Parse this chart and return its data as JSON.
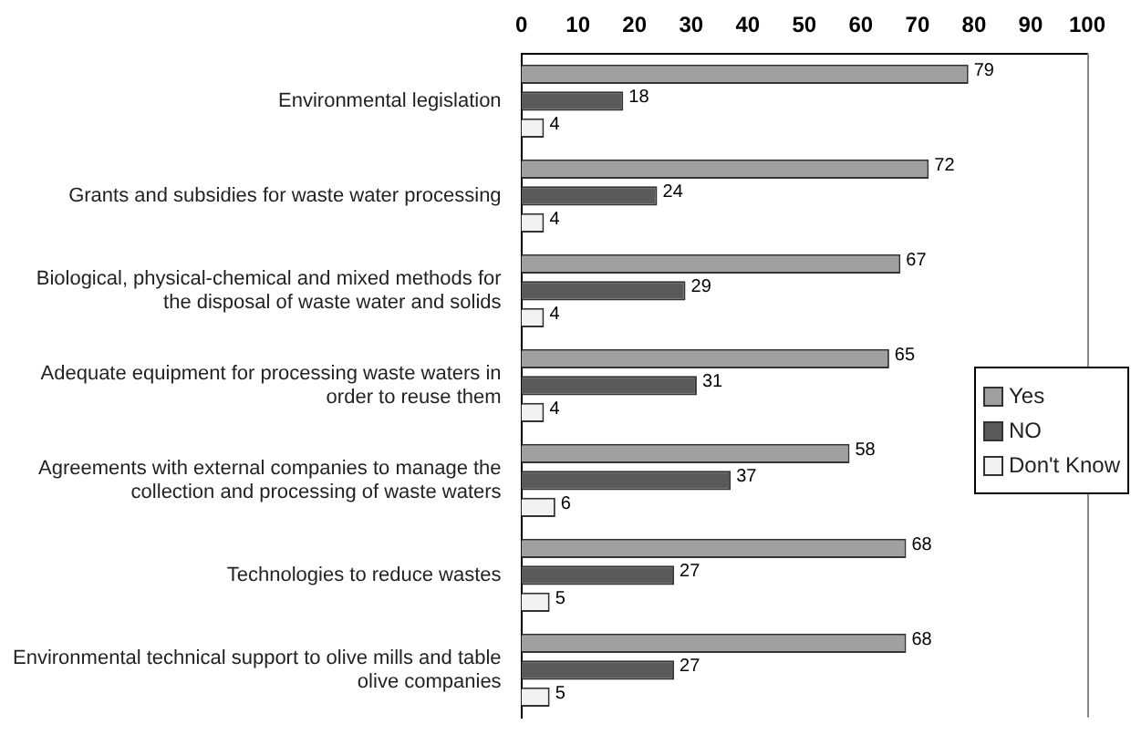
{
  "chart_data": {
    "type": "bar",
    "orientation": "horizontal",
    "categories": [
      "Environmental legislation",
      "Grants and subsidies for waste water processing",
      "Biological, physical-chemical and mixed methods for the disposal of waste water and solids",
      "Adequate equipment for processing waste waters in order to reuse them",
      "Agreements with external companies to manage the collection and processing of waste waters",
      "Technologies to reduce wastes",
      "Environmental technical support to olive mills and table olive companies"
    ],
    "series": [
      {
        "name": "Yes",
        "color": "#a0a0a0",
        "values": [
          79,
          72,
          67,
          65,
          58,
          68,
          68
        ]
      },
      {
        "name": "NO",
        "color": "#5a5a5a",
        "values": [
          18,
          24,
          29,
          31,
          37,
          27,
          27
        ]
      },
      {
        "name": "Don't Know",
        "color": "#f2f2f2",
        "values": [
          4,
          4,
          4,
          4,
          6,
          5,
          5
        ]
      }
    ],
    "xlim": [
      0,
      100
    ],
    "xticks": [
      0,
      10,
      20,
      30,
      40,
      50,
      60,
      70,
      80,
      90,
      100
    ],
    "data_labels": true,
    "grid": false,
    "legend": "right"
  }
}
